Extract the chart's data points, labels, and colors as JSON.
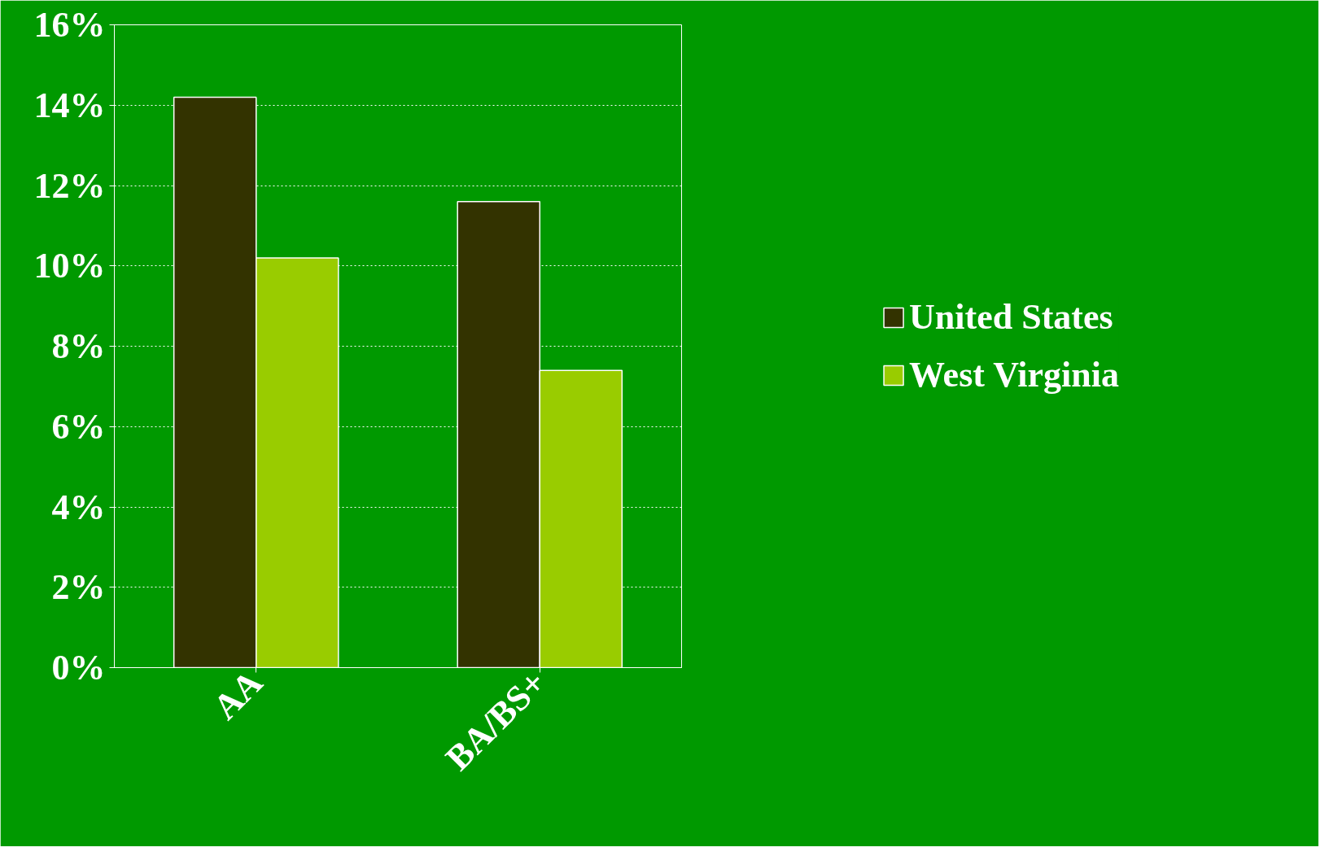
{
  "chart_data": {
    "type": "bar",
    "categories": [
      "AA",
      "BA/BS+"
    ],
    "series": [
      {
        "name": "United States",
        "color": "#333300",
        "values": [
          14.2,
          11.6
        ]
      },
      {
        "name": "West Virginia",
        "color": "#99cc00",
        "values": [
          10.2,
          7.4
        ]
      }
    ],
    "ylim": [
      0,
      16
    ],
    "yticks": [
      {
        "value": 0,
        "label": "0%"
      },
      {
        "value": 2,
        "label": "2%"
      },
      {
        "value": 4,
        "label": "4%"
      },
      {
        "value": 6,
        "label": "6%"
      },
      {
        "value": 8,
        "label": "8%"
      },
      {
        "value": 10,
        "label": "10%"
      },
      {
        "value": 12,
        "label": "12%"
      },
      {
        "value": 14,
        "label": "14%"
      },
      {
        "value": 16,
        "label": "16%"
      }
    ],
    "grid": "y",
    "legend": "right"
  }
}
